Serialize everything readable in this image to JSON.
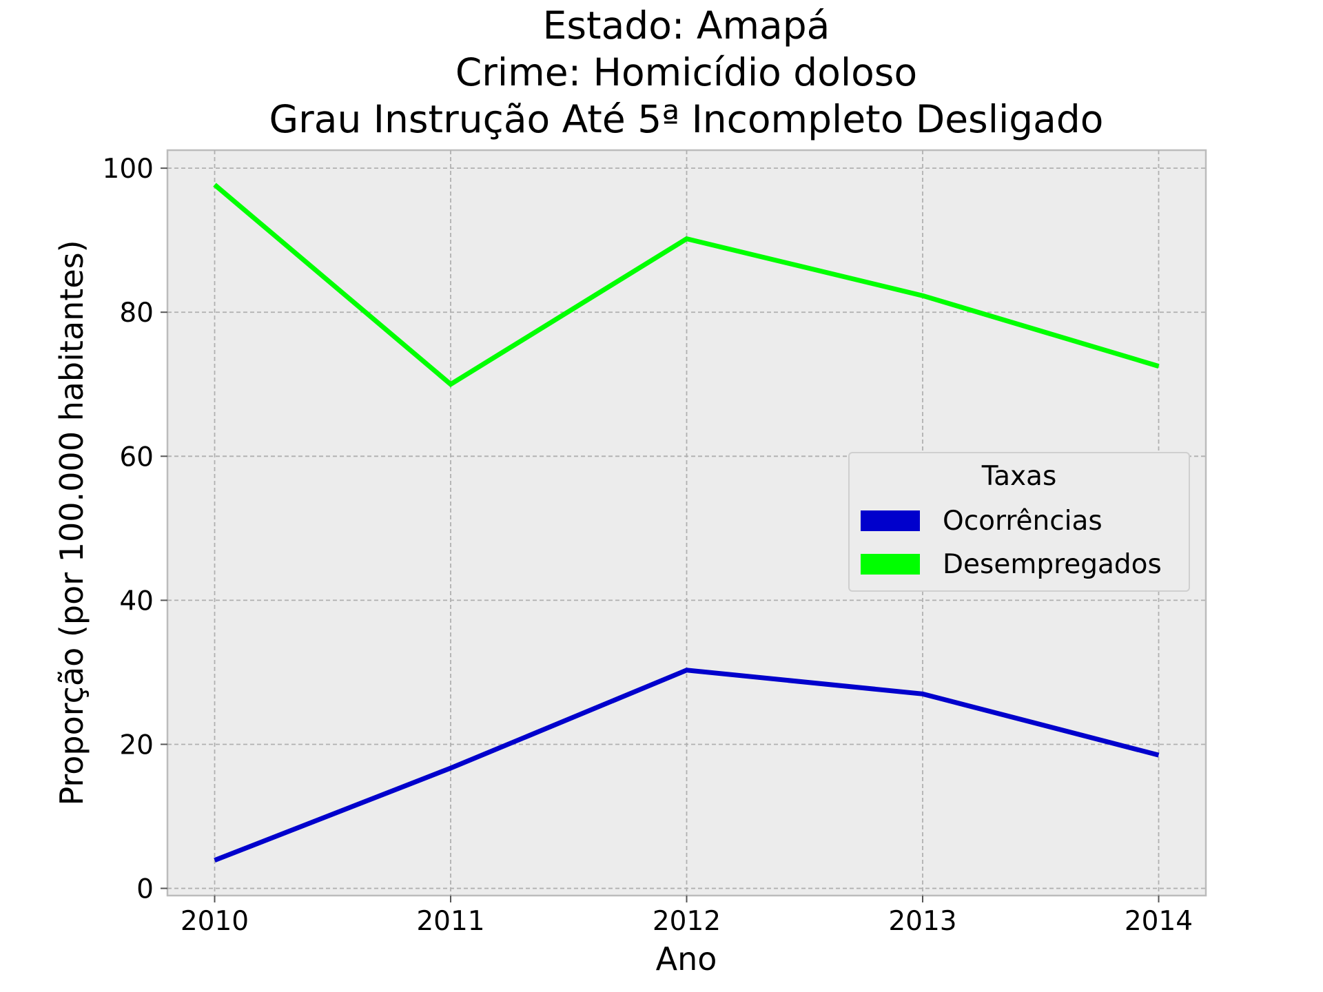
{
  "chart_data": {
    "type": "line",
    "title": [
      "Estado: Amapá",
      "Crime: Homicídio doloso",
      "Grau Instrução  Até 5ª Incompleto   Desligado"
    ],
    "xlabel": "Ano",
    "ylabel": "Proporção (por 100.000 habitantes)",
    "x": [
      2010,
      2011,
      2012,
      2013,
      2014
    ],
    "xticks": [
      "2010",
      "2011",
      "2012",
      "2013",
      "2014"
    ],
    "yticks": [
      "0",
      "20",
      "40",
      "60",
      "80",
      "100"
    ],
    "ylim": [
      -1,
      102.5
    ],
    "xlim": [
      2009.8,
      2014.2
    ],
    "grid": true,
    "background": "#ececec",
    "series": [
      {
        "name": "Ocorrências",
        "color": "#0000cc",
        "values": [
          3.9,
          16.7,
          30.3,
          27.0,
          18.5
        ]
      },
      {
        "name": "Desempregados",
        "color": "#00ff00",
        "values": [
          97.7,
          70.0,
          90.2,
          82.3,
          72.5
        ]
      }
    ],
    "legend": {
      "title": "Taxas",
      "position": "center-right"
    }
  }
}
